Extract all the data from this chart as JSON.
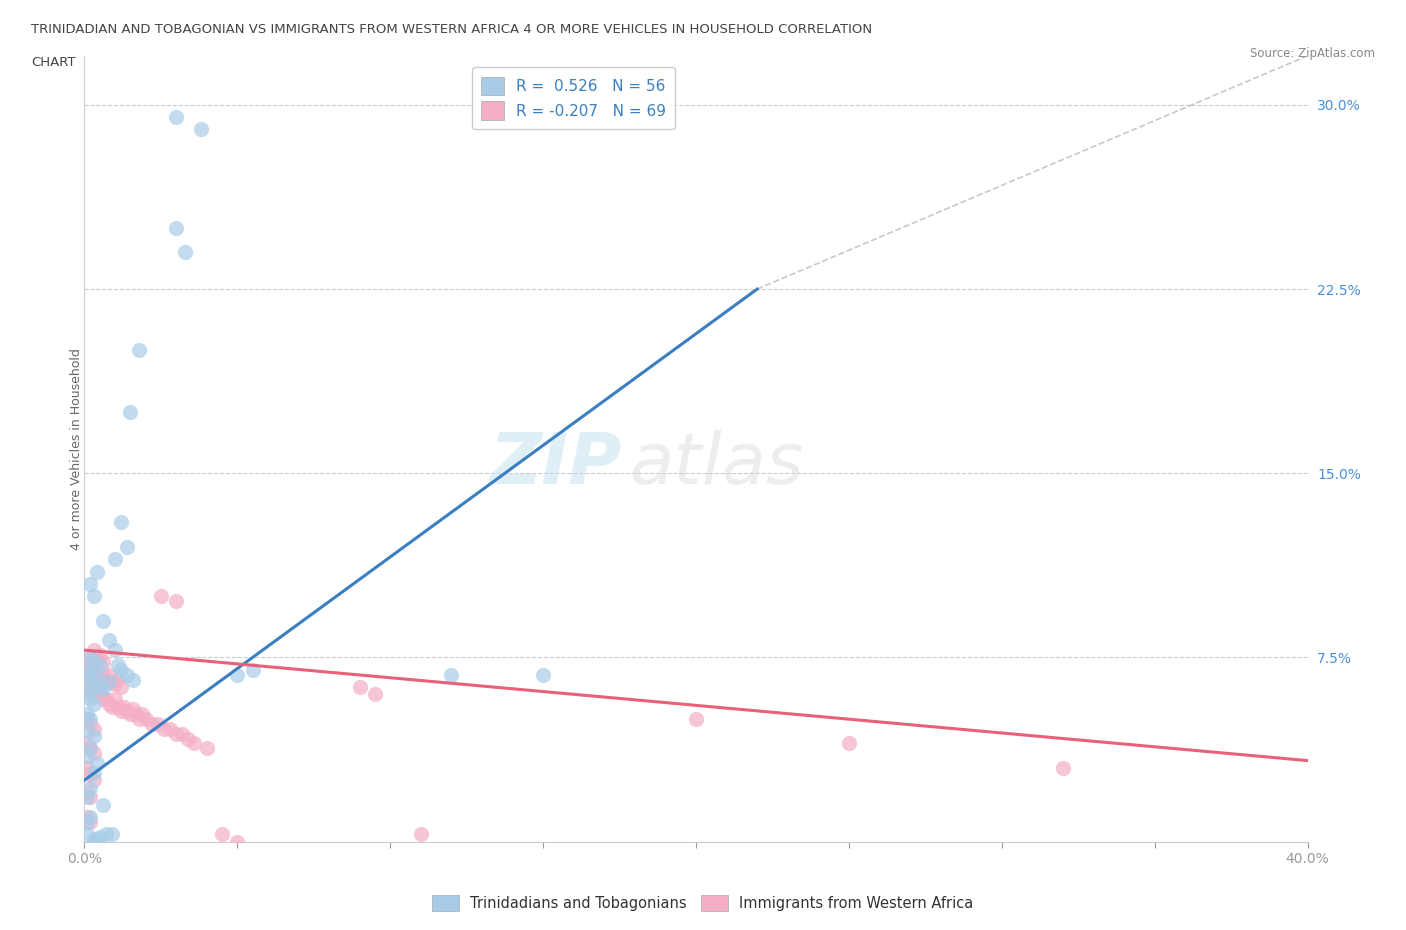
{
  "title_line1": "TRINIDADIAN AND TOBAGONIAN VS IMMIGRANTS FROM WESTERN AFRICA 4 OR MORE VEHICLES IN HOUSEHOLD CORRELATION",
  "title_line2": "CHART",
  "source": "Source: ZipAtlas.com",
  "ylabel": "4 or more Vehicles in Household",
  "yticks_labels": [
    "7.5%",
    "15.0%",
    "22.5%",
    "30.0%"
  ],
  "ytick_vals": [
    0.075,
    0.15,
    0.225,
    0.3
  ],
  "xlim": [
    0.0,
    0.4
  ],
  "ylim": [
    0.0,
    0.32
  ],
  "r_blue": 0.526,
  "n_blue": 56,
  "r_pink": -0.207,
  "n_pink": 69,
  "legend_label_blue": "Trinidadians and Tobagonians",
  "legend_label_pink": "Immigrants from Western Africa",
  "blue_color": "#a8cce8",
  "pink_color": "#f4afc5",
  "blue_line_color": "#3a7fc1",
  "pink_line_color": "#e8607a",
  "diagonal_color": "#c8c8c8",
  "blue_line": [
    [
      0.0,
      0.025
    ],
    [
      0.22,
      0.225
    ]
  ],
  "pink_line": [
    [
      0.0,
      0.078
    ],
    [
      0.4,
      0.033
    ]
  ],
  "diag_line": [
    [
      0.22,
      0.225
    ],
    [
      0.4,
      0.32
    ]
  ],
  "xtick_positions": [
    0.0,
    0.05,
    0.1,
    0.15,
    0.2,
    0.25,
    0.3,
    0.35,
    0.4
  ],
  "blue_pts": [
    [
      0.03,
      0.295
    ],
    [
      0.038,
      0.29
    ],
    [
      0.03,
      0.25
    ],
    [
      0.033,
      0.24
    ],
    [
      0.018,
      0.2
    ],
    [
      0.015,
      0.175
    ],
    [
      0.012,
      0.13
    ],
    [
      0.014,
      0.12
    ],
    [
      0.01,
      0.115
    ],
    [
      0.004,
      0.11
    ],
    [
      0.002,
      0.105
    ],
    [
      0.003,
      0.1
    ],
    [
      0.006,
      0.09
    ],
    [
      0.008,
      0.082
    ],
    [
      0.01,
      0.078
    ],
    [
      0.011,
      0.072
    ],
    [
      0.012,
      0.07
    ],
    [
      0.014,
      0.068
    ],
    [
      0.016,
      0.066
    ],
    [
      0.002,
      0.075
    ],
    [
      0.003,
      0.073
    ],
    [
      0.005,
      0.072
    ],
    [
      0.001,
      0.07
    ],
    [
      0.002,
      0.068
    ],
    [
      0.004,
      0.068
    ],
    [
      0.001,
      0.065
    ],
    [
      0.003,
      0.063
    ],
    [
      0.005,
      0.063
    ],
    [
      0.006,
      0.062
    ],
    [
      0.001,
      0.06
    ],
    [
      0.002,
      0.058
    ],
    [
      0.003,
      0.056
    ],
    [
      0.001,
      0.052
    ],
    [
      0.002,
      0.05
    ],
    [
      0.001,
      0.045
    ],
    [
      0.003,
      0.043
    ],
    [
      0.002,
      0.038
    ],
    [
      0.001,
      0.035
    ],
    [
      0.004,
      0.032
    ],
    [
      0.003,
      0.028
    ],
    [
      0.002,
      0.022
    ],
    [
      0.001,
      0.018
    ],
    [
      0.006,
      0.015
    ],
    [
      0.002,
      0.01
    ],
    [
      0.001,
      0.008
    ],
    [
      0.008,
      0.065
    ],
    [
      0.05,
      0.068
    ],
    [
      0.055,
      0.07
    ],
    [
      0.12,
      0.068
    ],
    [
      0.15,
      0.068
    ],
    [
      0.001,
      0.003
    ],
    [
      0.003,
      0.001
    ],
    [
      0.004,
      0.0
    ],
    [
      0.005,
      0.002
    ],
    [
      0.007,
      0.003
    ],
    [
      0.009,
      0.003
    ]
  ],
  "pink_pts": [
    [
      0.001,
      0.072
    ],
    [
      0.002,
      0.075
    ],
    [
      0.003,
      0.078
    ],
    [
      0.004,
      0.074
    ],
    [
      0.005,
      0.076
    ],
    [
      0.006,
      0.073
    ],
    [
      0.001,
      0.068
    ],
    [
      0.002,
      0.07
    ],
    [
      0.003,
      0.071
    ],
    [
      0.004,
      0.068
    ],
    [
      0.005,
      0.067
    ],
    [
      0.006,
      0.068
    ],
    [
      0.007,
      0.066
    ],
    [
      0.008,
      0.068
    ],
    [
      0.009,
      0.065
    ],
    [
      0.01,
      0.064
    ],
    [
      0.011,
      0.066
    ],
    [
      0.012,
      0.063
    ],
    [
      0.001,
      0.063
    ],
    [
      0.002,
      0.062
    ],
    [
      0.003,
      0.06
    ],
    [
      0.004,
      0.062
    ],
    [
      0.005,
      0.06
    ],
    [
      0.006,
      0.058
    ],
    [
      0.007,
      0.058
    ],
    [
      0.008,
      0.056
    ],
    [
      0.009,
      0.055
    ],
    [
      0.01,
      0.058
    ],
    [
      0.011,
      0.055
    ],
    [
      0.012,
      0.053
    ],
    [
      0.013,
      0.055
    ],
    [
      0.014,
      0.053
    ],
    [
      0.015,
      0.052
    ],
    [
      0.016,
      0.054
    ],
    [
      0.017,
      0.052
    ],
    [
      0.018,
      0.05
    ],
    [
      0.019,
      0.052
    ],
    [
      0.02,
      0.05
    ],
    [
      0.022,
      0.048
    ],
    [
      0.024,
      0.048
    ],
    [
      0.026,
      0.046
    ],
    [
      0.028,
      0.046
    ],
    [
      0.03,
      0.044
    ],
    [
      0.032,
      0.044
    ],
    [
      0.034,
      0.042
    ],
    [
      0.036,
      0.04
    ],
    [
      0.04,
      0.038
    ],
    [
      0.001,
      0.05
    ],
    [
      0.002,
      0.048
    ],
    [
      0.003,
      0.046
    ],
    [
      0.001,
      0.04
    ],
    [
      0.002,
      0.038
    ],
    [
      0.003,
      0.036
    ],
    [
      0.001,
      0.03
    ],
    [
      0.002,
      0.028
    ],
    [
      0.003,
      0.025
    ],
    [
      0.001,
      0.02
    ],
    [
      0.002,
      0.018
    ],
    [
      0.001,
      0.01
    ],
    [
      0.002,
      0.008
    ],
    [
      0.025,
      0.1
    ],
    [
      0.03,
      0.098
    ],
    [
      0.09,
      0.063
    ],
    [
      0.095,
      0.06
    ],
    [
      0.2,
      0.05
    ],
    [
      0.25,
      0.04
    ],
    [
      0.32,
      0.03
    ],
    [
      0.045,
      0.003
    ],
    [
      0.05,
      0.0
    ],
    [
      0.11,
      0.003
    ]
  ]
}
